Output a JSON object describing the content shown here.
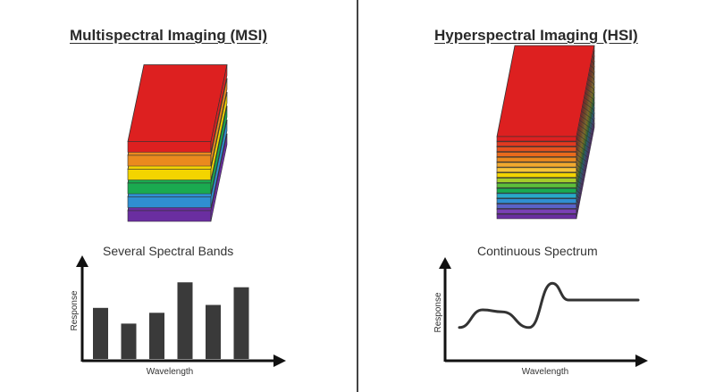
{
  "msi": {
    "title": "Multispectral Imaging (MSI)",
    "caption": "Several Spectral Bands",
    "xlabel": "Wavelength",
    "ylabel": "Response",
    "layer_colors": [
      "#6a2ea0",
      "#2f8fd1",
      "#1aaa50",
      "#f3d400",
      "#ea8a1e",
      "#dd2020"
    ],
    "bar_values": [
      0.52,
      0.36,
      0.47,
      0.78,
      0.55,
      0.73
    ]
  },
  "hsi": {
    "title": "Hyperspectral Imaging (HSI)",
    "caption": "Continuous Spectrum",
    "xlabel": "Wavelength",
    "ylabel": "Response",
    "layer_colors": [
      "#6a2ea0",
      "#7a40b4",
      "#5a62c8",
      "#2f8fd1",
      "#28a8c8",
      "#1aaa50",
      "#5cbe3a",
      "#a6cc2a",
      "#f3d400",
      "#f7c43a",
      "#f0a82e",
      "#ea8a1e",
      "#e86a1c",
      "#e4521e",
      "#e03a20",
      "#dd2020"
    ],
    "curve": [
      0.32,
      0.5,
      0.48,
      0.32,
      0.77,
      0.6,
      0.6
    ]
  }
}
